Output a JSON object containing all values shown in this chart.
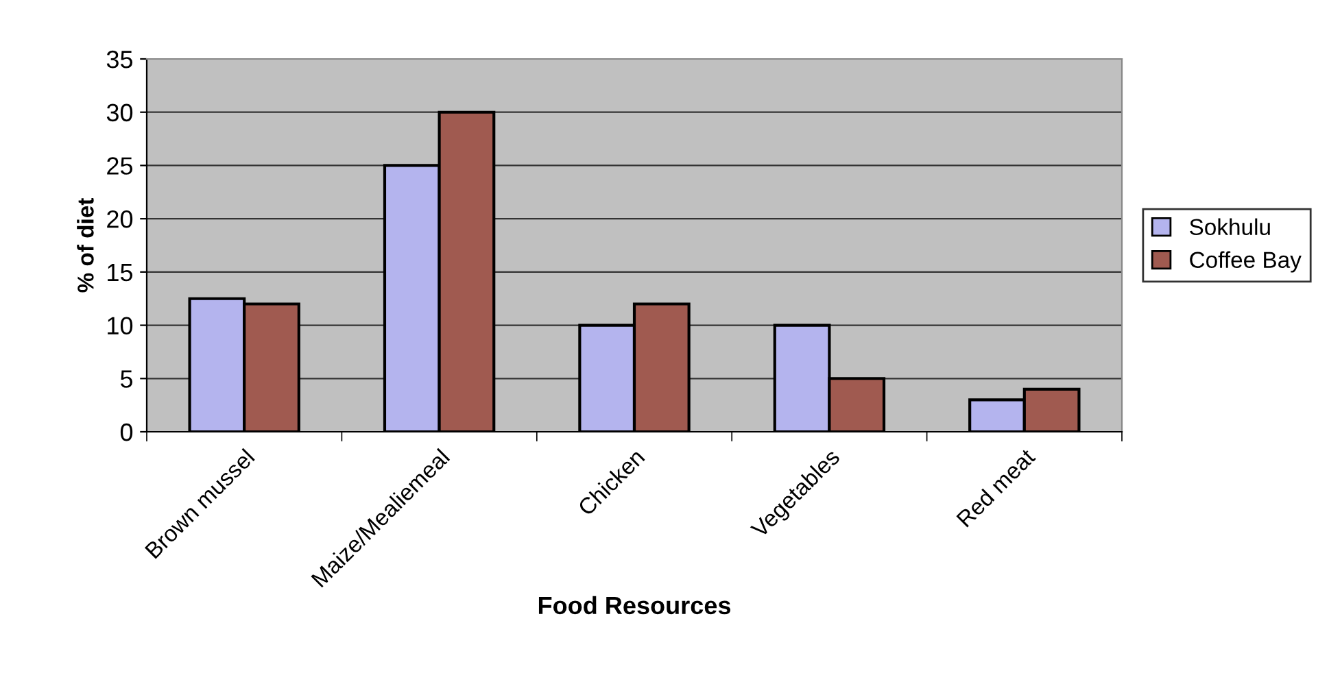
{
  "chart_data": {
    "type": "bar",
    "xlabel": "Food Resources",
    "ylabel": "% of diet",
    "categories": [
      "Brown mussel",
      "Maize/Mealiemeal",
      "Chicken",
      "Vegetables",
      "Red meat"
    ],
    "series": [
      {
        "name": "Sokhulu",
        "color": "#b4b4ee",
        "values": [
          12.5,
          25,
          10,
          10,
          3
        ]
      },
      {
        "name": "Coffee Bay",
        "color": "#a05a50",
        "values": [
          12,
          30,
          12,
          5,
          4
        ]
      }
    ],
    "ylim": [
      0,
      35
    ],
    "yticks": [
      0,
      5,
      10,
      15,
      20,
      25,
      30,
      35
    ],
    "grid": "y",
    "legend": "right"
  }
}
